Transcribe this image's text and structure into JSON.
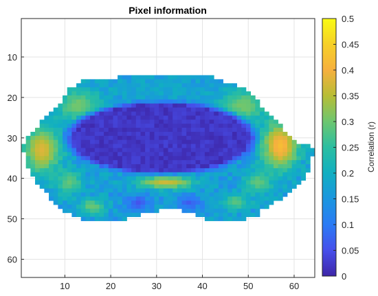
{
  "chart_data": {
    "type": "heatmap",
    "title": "Pixel information",
    "xlabel": "",
    "ylabel": "",
    "xlim": [
      0.5,
      64.5
    ],
    "ylim": [
      0.5,
      64.5
    ],
    "y_reversed": true,
    "x_ticks": [
      10,
      20,
      30,
      40,
      50,
      60
    ],
    "y_ticks": [
      10,
      20,
      30,
      40,
      50,
      60
    ],
    "grid": true,
    "colorbar": {
      "label": "Correlation (r)",
      "range": [
        0,
        0.5
      ],
      "ticks": [
        0,
        0.05,
        0.1,
        0.15,
        0.2,
        0.25,
        0.3,
        0.35,
        0.4,
        0.45,
        0.5
      ],
      "tick_labels": [
        "0",
        "0.05",
        "0.1",
        "0.15",
        "0.2",
        "0.25",
        "0.3",
        "0.35",
        "0.4",
        "0.45",
        "0.5"
      ],
      "colormap": "parula"
    },
    "mask_rows": [
      {
        "row": 15,
        "start": 22,
        "end": 42
      },
      {
        "row": 16,
        "start": 14,
        "end": 44
      },
      {
        "row": 17,
        "start": 13,
        "end": 47
      },
      {
        "row": 18,
        "start": 11,
        "end": 49
      },
      {
        "row": 19,
        "start": 11,
        "end": 50
      },
      {
        "row": 20,
        "start": 10,
        "end": 51
      },
      {
        "row": 21,
        "start": 10,
        "end": 52
      },
      {
        "row": 22,
        "start": 9,
        "end": 52
      },
      {
        "row": 23,
        "start": 8,
        "end": 53
      },
      {
        "row": 24,
        "start": 7,
        "end": 54
      },
      {
        "row": 25,
        "start": 6,
        "end": 55
      },
      {
        "row": 26,
        "start": 5,
        "end": 56
      },
      {
        "row": 27,
        "start": 5,
        "end": 57
      },
      {
        "row": 28,
        "start": 4,
        "end": 57
      },
      {
        "row": 29,
        "start": 3,
        "end": 58
      },
      {
        "row": 30,
        "start": 2,
        "end": 59
      },
      {
        "row": 31,
        "start": 2,
        "end": 60
      },
      {
        "row": 32,
        "start": 1,
        "end": 63
      },
      {
        "row": 33,
        "start": 1,
        "end": 64
      },
      {
        "row": 34,
        "start": 2,
        "end": 64
      },
      {
        "row": 35,
        "start": 2,
        "end": 63
      },
      {
        "row": 36,
        "start": 2,
        "end": 63
      },
      {
        "row": 37,
        "start": 2,
        "end": 63
      },
      {
        "row": 38,
        "start": 3,
        "end": 63
      },
      {
        "row": 39,
        "start": 3,
        "end": 62
      },
      {
        "row": 40,
        "start": 4,
        "end": 62
      },
      {
        "row": 41,
        "start": 4,
        "end": 61
      },
      {
        "row": 42,
        "start": 5,
        "end": 60
      },
      {
        "row": 43,
        "start": 6,
        "end": 59
      },
      {
        "row": 44,
        "start": 7,
        "end": 58
      },
      {
        "row": 45,
        "start": 7,
        "end": 57
      },
      {
        "row": 46,
        "start": 8,
        "end": 55
      },
      {
        "row": 47,
        "start": 9,
        "end": 54
      },
      {
        "row": 48,
        "start": 10,
        "end": 52
      },
      {
        "row": 49,
        "start": 12,
        "end": 52
      },
      {
        "row": 50,
        "start": 14,
        "end": 49
      }
    ],
    "notch_rows": [
      {
        "row": 48,
        "start": 31,
        "end": 35
      },
      {
        "row": 49,
        "start": 27,
        "end": 38
      },
      {
        "row": 50,
        "start": 24,
        "end": 40
      }
    ],
    "regions": [
      {
        "name": "background",
        "value": 0.16
      },
      {
        "name": "central-body",
        "center": [
          30,
          31.5
        ],
        "value": 0.02
      },
      {
        "name": "left-flank",
        "center": [
          5,
          33
        ],
        "value": 0.38
      },
      {
        "name": "right-flank",
        "center": [
          57,
          32
        ],
        "value": 0.42
      },
      {
        "name": "upper-left",
        "center": [
          13,
          22
        ],
        "value": 0.33
      },
      {
        "name": "upper-right",
        "center": [
          49,
          22
        ],
        "value": 0.33
      },
      {
        "name": "top-band",
        "center": [
          31,
          18
        ],
        "value": 0.2
      },
      {
        "name": "lower-center-band",
        "center": [
          32,
          41
        ],
        "value": 0.38
      },
      {
        "name": "lower-left-spot",
        "center": [
          16,
          47
        ],
        "value": 0.33
      },
      {
        "name": "lower-right-spot",
        "center": [
          47,
          46
        ],
        "value": 0.32
      },
      {
        "name": "dark-pocket-left",
        "center": [
          26,
          46
        ],
        "value": 0.05
      },
      {
        "name": "dark-pocket-right",
        "center": [
          37,
          46
        ],
        "value": 0.06
      },
      {
        "name": "ridge-left",
        "center": [
          11,
          41
        ],
        "value": 0.32
      },
      {
        "name": "ridge-right",
        "center": [
          52,
          41
        ],
        "value": 0.32
      }
    ]
  }
}
